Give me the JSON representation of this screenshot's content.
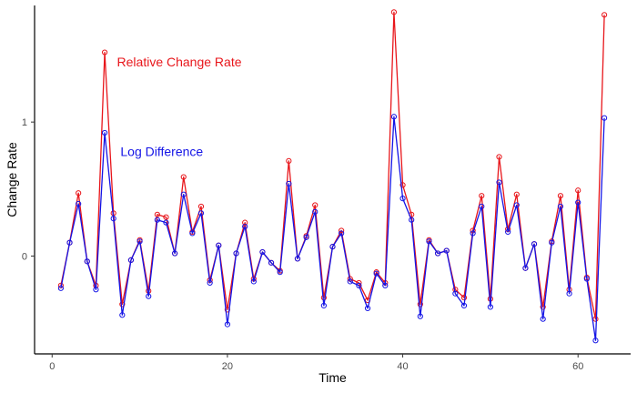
{
  "chart_data": {
    "type": "line",
    "xlabel": "Time",
    "ylabel": "Change Rate",
    "xlim": [
      -2,
      66
    ],
    "ylim": [
      -0.73,
      1.87
    ],
    "x_ticks": [
      0,
      20,
      40,
      60
    ],
    "y_ticks": [
      0,
      1
    ],
    "grid": false,
    "annotations": [
      {
        "text": "Relative Change Rate",
        "x": 7.4,
        "y": 1.45,
        "color": "#e8161b"
      },
      {
        "text": "Log Difference",
        "x": 7.8,
        "y": 0.78,
        "color": "#1414e6"
      }
    ],
    "x": [
      1,
      2,
      3,
      4,
      5,
      6,
      7,
      8,
      9,
      10,
      11,
      12,
      13,
      14,
      15,
      16,
      17,
      18,
      19,
      20,
      21,
      22,
      23,
      24,
      25,
      26,
      27,
      28,
      29,
      30,
      31,
      32,
      33,
      34,
      35,
      36,
      37,
      38,
      39,
      40,
      41,
      42,
      43,
      44,
      45,
      46,
      47,
      48,
      49,
      50,
      51,
      52,
      53,
      54,
      55,
      56,
      57,
      58,
      59,
      60,
      61,
      62,
      63
    ],
    "series": [
      {
        "name": "Relative Change Rate",
        "color": "#e8161b",
        "values": [
          -0.22,
          0.1,
          0.47,
          -0.04,
          -0.22,
          1.52,
          0.32,
          -0.36,
          -0.03,
          0.12,
          -0.26,
          0.31,
          0.29,
          0.02,
          0.59,
          0.18,
          0.37,
          -0.18,
          0.08,
          -0.4,
          0.02,
          0.25,
          -0.17,
          0.03,
          -0.05,
          -0.11,
          0.71,
          -0.02,
          0.15,
          0.38,
          -0.31,
          0.07,
          0.19,
          -0.17,
          -0.2,
          -0.33,
          -0.12,
          -0.2,
          1.82,
          0.53,
          0.31,
          -0.36,
          0.12,
          0.02,
          0.04,
          -0.25,
          -0.31,
          0.19,
          0.45,
          -0.32,
          0.74,
          0.2,
          0.46,
          -0.09,
          0.09,
          -0.38,
          0.11,
          0.45,
          -0.25,
          0.49,
          -0.16,
          -0.47,
          1.8
        ]
      },
      {
        "name": "Log Difference",
        "color": "#1414e6",
        "values": [
          -0.24,
          0.1,
          0.39,
          -0.04,
          -0.25,
          0.92,
          0.28,
          -0.44,
          -0.03,
          0.11,
          -0.3,
          0.27,
          0.25,
          0.02,
          0.46,
          0.17,
          0.32,
          -0.2,
          0.08,
          -0.51,
          0.02,
          0.22,
          -0.19,
          0.03,
          -0.05,
          -0.12,
          0.54,
          -0.02,
          0.14,
          0.33,
          -0.37,
          0.07,
          0.17,
          -0.19,
          -0.22,
          -0.39,
          -0.13,
          -0.22,
          1.04,
          0.43,
          0.27,
          -0.45,
          0.11,
          0.02,
          0.04,
          -0.28,
          -0.37,
          0.17,
          0.37,
          -0.38,
          0.55,
          0.18,
          0.38,
          -0.09,
          0.09,
          -0.47,
          0.1,
          0.37,
          -0.28,
          0.4,
          -0.17,
          -0.63,
          1.03
        ]
      }
    ]
  }
}
